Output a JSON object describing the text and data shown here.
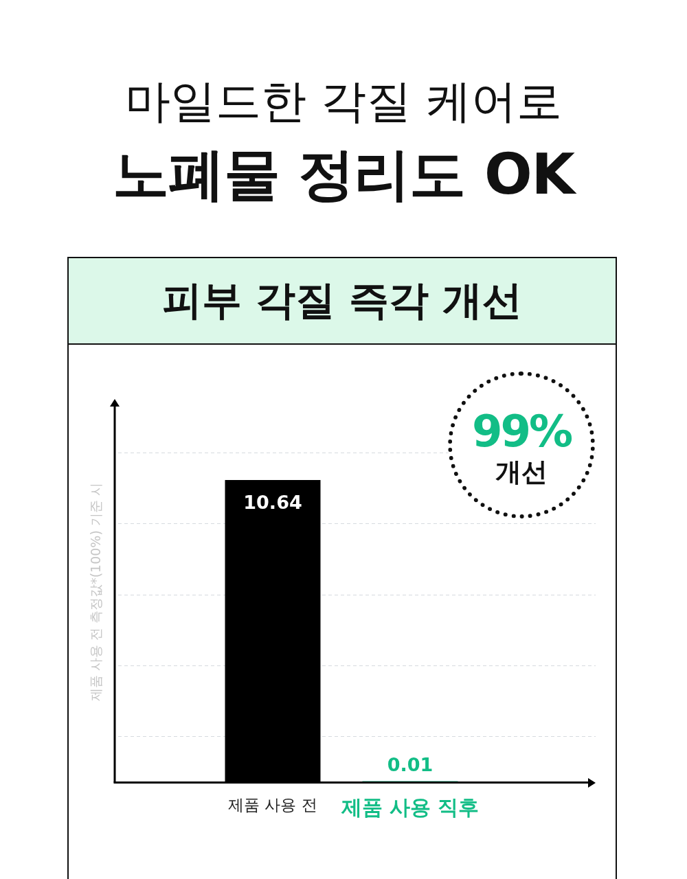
{
  "chart_data": {
    "type": "bar",
    "title": "마일드한 각질 케어로\n노폐물 정리도 OK",
    "subtitle": "피부 각질 즉각 개선",
    "ylabel": "제품 사용 전 측정값*(100%) 기준 시",
    "categories": [
      "제품 사용 전",
      "제품 사용 직후"
    ],
    "values": [
      10.64,
      0.01
    ],
    "colors": [
      "#000000",
      "#12bd86"
    ],
    "data_labels": true,
    "ylim": [
      0,
      13.4
    ],
    "yticks": [
      {
        "value": 1.6,
        "label": null
      },
      {
        "value": 4.1,
        "label": null
      },
      {
        "value": 6.6,
        "label": null
      },
      {
        "value": 9.1,
        "label": null
      },
      {
        "value": 11.6,
        "label": null
      }
    ],
    "grid": "y",
    "tick_labels": "x",
    "annotations": [
      "99%",
      "개선"
    ]
  }
}
